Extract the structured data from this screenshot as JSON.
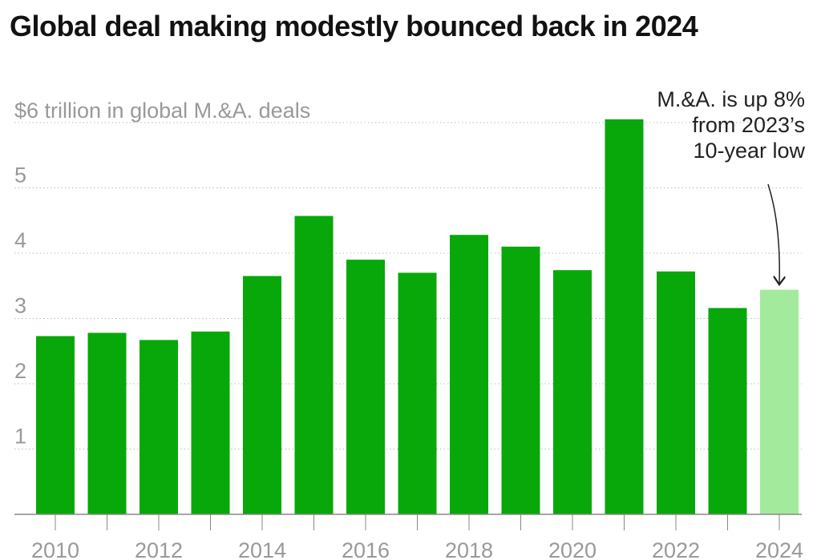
{
  "title": "Global deal making modestly bounced back in 2024",
  "chart_data": {
    "type": "bar",
    "title": "Global deal making modestly bounced back in 2024",
    "unit_label": "$6 trillion in global M.&A. deals",
    "categories": [
      "2010",
      "2011",
      "2012",
      "2013",
      "2014",
      "2015",
      "2016",
      "2017",
      "2018",
      "2019",
      "2020",
      "2021",
      "2022",
      "2023",
      "2024"
    ],
    "values": [
      2.73,
      2.78,
      2.67,
      2.8,
      3.65,
      4.57,
      3.9,
      3.7,
      4.28,
      4.1,
      3.74,
      6.05,
      3.72,
      3.16,
      3.44
    ],
    "highlight_index": 14,
    "x_tick_labels": [
      "2010",
      "2012",
      "2014",
      "2016",
      "2018",
      "2020",
      "2022",
      "2024"
    ],
    "y_ticks": [
      1,
      2,
      3,
      4,
      5
    ],
    "ylim": [
      0,
      6
    ],
    "colors": {
      "bar": "#08a80a",
      "highlight": "#a3ea9d",
      "grid": "#bbbbbb",
      "axis": "#888888"
    },
    "annotation": {
      "lines": [
        "M.&A. is up 8%",
        "from 2023’s",
        "10-year low"
      ],
      "target": "2024"
    },
    "xlabel": "",
    "ylabel": ""
  }
}
